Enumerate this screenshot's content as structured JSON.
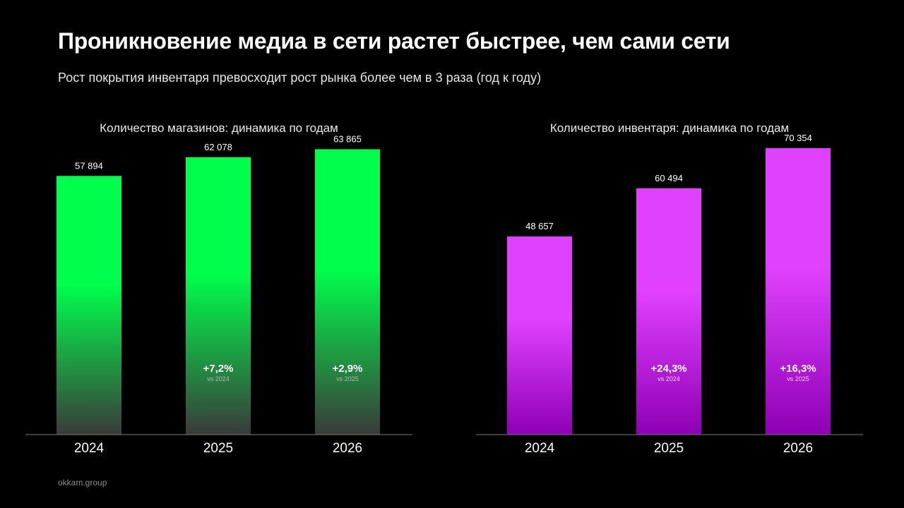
{
  "header": {
    "title": "Проникновение медиа в сети растет быстрее, чем сами сети",
    "subtitle": "Рост покрытия инвентаря превосходит рост рынка более чем в 3 раза (год к году)"
  },
  "footer": {
    "brand": "okkam.group"
  },
  "chart_data": [
    {
      "type": "bar",
      "title": "Количество магазинов: динамика по годам",
      "categories": [
        "2024",
        "2025",
        "2026"
      ],
      "values": [
        57894,
        62078,
        63865
      ],
      "value_labels": [
        "57 894",
        "62 078",
        "63 865"
      ],
      "growth_labels": [
        "",
        "+7,2%",
        "+2,9%"
      ],
      "growth_notes": [
        "",
        "vs 2024",
        "vs 2025"
      ],
      "colors": {
        "top": "#00ff4c",
        "bottom": "#3a3a3a"
      },
      "ylim": [
        0,
        72000
      ],
      "grid": false,
      "xlabel": "",
      "ylabel": ""
    },
    {
      "type": "bar",
      "title": "Количество инвентаря: динамика по годам",
      "categories": [
        "2024",
        "2025",
        "2026"
      ],
      "values": [
        48657,
        60494,
        70354
      ],
      "value_labels": [
        "48 657",
        "60 494",
        "70 354"
      ],
      "growth_labels": [
        "",
        "+24,3%",
        "+16,3%"
      ],
      "growth_notes": [
        "",
        "vs 2024",
        "vs 2025"
      ],
      "colors": {
        "top": "#e040ff",
        "bottom": "#8e00b4"
      },
      "ylim": [
        0,
        79000
      ],
      "grid": false,
      "xlabel": "",
      "ylabel": ""
    }
  ]
}
